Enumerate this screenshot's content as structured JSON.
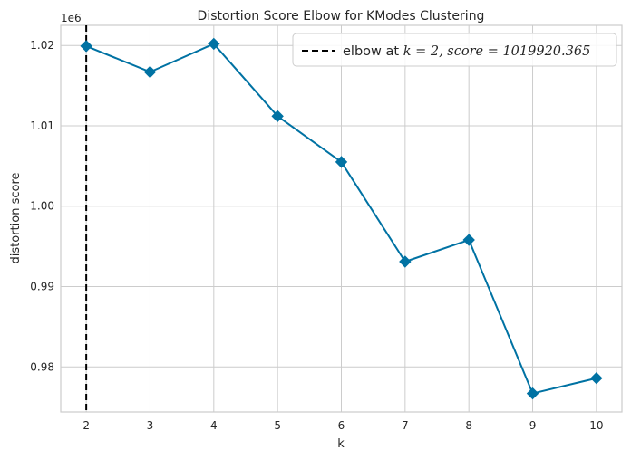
{
  "chart_data": {
    "type": "line",
    "title": "Distortion Score Elbow for KModes Clustering",
    "xlabel": "k",
    "ylabel": "distortion score",
    "y_offset_label": "1e6",
    "x": [
      2,
      3,
      4,
      5,
      6,
      7,
      8,
      9,
      10
    ],
    "xlim": [
      1.6,
      10.4
    ],
    "ylim": [
      974400,
      1022500
    ],
    "x_ticks": [
      2,
      3,
      4,
      5,
      6,
      7,
      8,
      9,
      10
    ],
    "y_ticks": [
      980000,
      990000,
      1000000,
      1010000,
      1020000
    ],
    "y_tick_labels": [
      "0.98",
      "0.99",
      "1.00",
      "1.01",
      "1.02"
    ],
    "series": [
      {
        "values": [
          1019920.365,
          1016700,
          1020200,
          1011200,
          1005500,
          993100,
          995800,
          976700,
          978600
        ],
        "color": "#0072a3",
        "marker": "diamond"
      }
    ],
    "elbow": {
      "k": 2,
      "color": "#000000",
      "style": "dashed",
      "legend_prefix": "elbow at ",
      "legend_formula": "k = 2, score = 1019920.365"
    },
    "grid": true,
    "legend_position": "top-right"
  }
}
